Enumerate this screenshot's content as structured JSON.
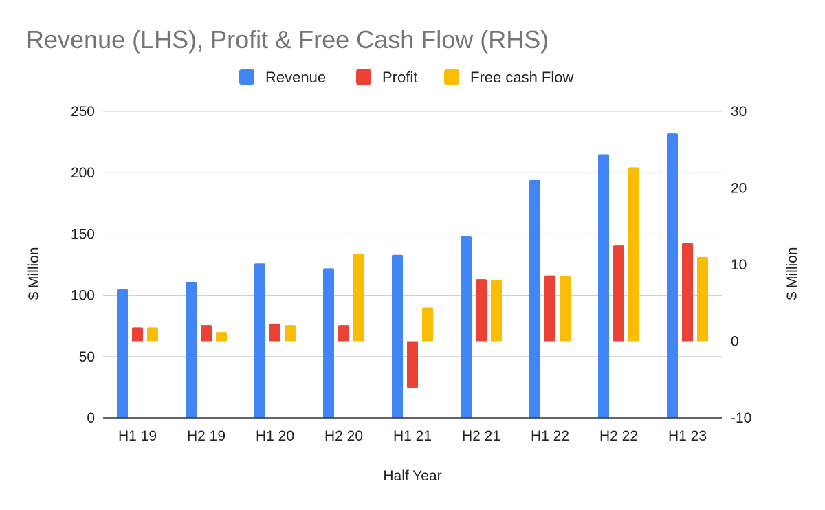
{
  "chart_data": {
    "type": "bar",
    "title": "Revenue (LHS), Profit & Free Cash Flow (RHS)",
    "xlabel": "Half Year",
    "ylabel_left": "$ Million",
    "ylabel_right": "$ Million",
    "categories": [
      "H1 19",
      "H2 19",
      "H1 20",
      "H2 20",
      "H1 21",
      "H2 21",
      "H1 22",
      "H2 22",
      "H1 23"
    ],
    "y_left": {
      "range": [
        0,
        250
      ],
      "ticks": [
        "0",
        "50",
        "100",
        "150",
        "200",
        "250"
      ]
    },
    "y_right": {
      "range": [
        -10,
        30
      ],
      "ticks": [
        "-10",
        "0",
        "10",
        "20",
        "30"
      ]
    },
    "grid": true,
    "legend_position": "top",
    "series": [
      {
        "name": "Revenue",
        "axis": "left",
        "color": "#4285F4",
        "values": [
          105,
          111,
          126,
          122,
          133,
          148,
          194,
          215,
          232
        ]
      },
      {
        "name": "Profit",
        "axis": "right",
        "color": "#EA4335",
        "values": [
          1.8,
          2.1,
          2.3,
          2.1,
          -6.1,
          8.1,
          8.6,
          12.5,
          12.8
        ]
      },
      {
        "name": "Free cash Flow",
        "axis": "right",
        "color": "#FBBC04",
        "values": [
          1.8,
          1.2,
          2.1,
          11.4,
          4.4,
          8.0,
          8.5,
          22.7,
          11.0
        ]
      }
    ]
  }
}
